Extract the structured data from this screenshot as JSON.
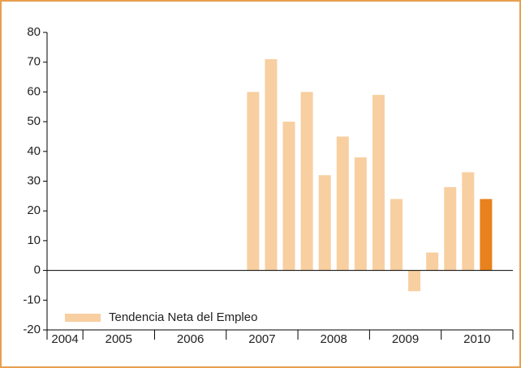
{
  "chart_data": {
    "type": "bar",
    "categories": [
      "2004",
      null,
      "2005",
      null,
      null,
      null,
      "2006",
      null,
      null,
      null,
      "2007",
      null,
      null,
      null,
      "2008",
      null,
      null,
      null,
      "2009",
      null,
      null,
      null,
      "2010",
      null,
      null,
      null
    ],
    "series": [
      {
        "name": "Tendencia Neta del Empleo",
        "color": "#f8cfa0",
        "values": [
          null,
          null,
          null,
          null,
          null,
          null,
          null,
          null,
          null,
          null,
          null,
          60,
          71,
          50,
          60,
          32,
          45,
          38,
          59,
          24,
          -7,
          6,
          28,
          33,
          24,
          null
        ],
        "colors": [
          "#f8cfa0",
          "#f8cfa0",
          "#f8cfa0",
          "#f8cfa0",
          "#f8cfa0",
          "#f8cfa0",
          "#f8cfa0",
          "#f8cfa0",
          "#f8cfa0",
          "#f8cfa0",
          "#f8cfa0",
          "#f8cfa0",
          "#f8cfa0",
          "#f8cfa0",
          "#f8cfa0",
          "#f8cfa0",
          "#f8cfa0",
          "#f8cfa0",
          "#f8cfa0",
          "#f8cfa0",
          "#f8cfa0",
          "#f8cfa0",
          "#f8cfa0",
          "#f8cfa0",
          "#e8821e",
          "#f8cfa0"
        ]
      }
    ],
    "ylim": [
      -20,
      80
    ],
    "yticks": [
      -20,
      -10,
      0,
      10,
      20,
      30,
      40,
      50,
      60,
      70,
      80
    ],
    "legend": "bottom-left"
  }
}
